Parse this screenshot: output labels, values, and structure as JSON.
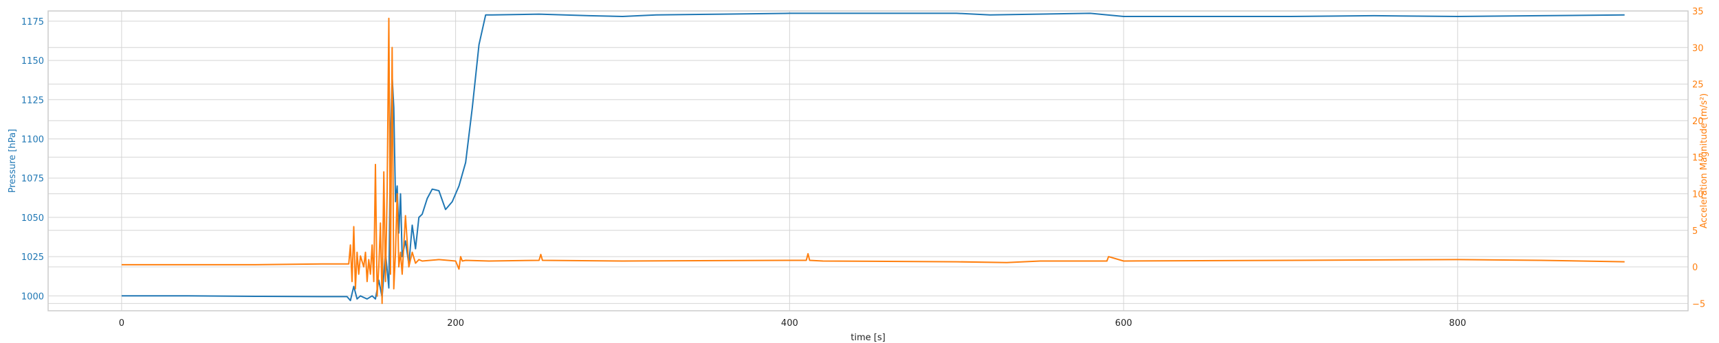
{
  "chart_data": {
    "type": "line",
    "title": "",
    "xlabel": "time [s]",
    "ylabel_left": "Pressure [hPa]",
    "ylabel_right": "Acceleration Magnitude (m/s²)",
    "xlim": [
      -44,
      938
    ],
    "ylim_left": [
      990.5,
      1181.5
    ],
    "ylim_right": [
      -6,
      35
    ],
    "grid": true,
    "x_ticks": [
      0,
      200,
      400,
      600,
      800
    ],
    "y_left_ticks": [
      1000,
      1025,
      1050,
      1075,
      1100,
      1125,
      1150,
      1175
    ],
    "y_right_ticks": [
      -5,
      0,
      5,
      10,
      15,
      20,
      25,
      30,
      35
    ],
    "colors": {
      "pressure": "#1f77b4",
      "acceleration": "#ff7f0e",
      "grid": "#d4d4d4",
      "axes": "#cccccc",
      "text": "#222222"
    },
    "series": [
      {
        "axis": "left",
        "color": "#1f77b4",
        "x": [
          0,
          40,
          80,
          120,
          135,
          137,
          139,
          141,
          143,
          145,
          147,
          150,
          152,
          154,
          156,
          158,
          160,
          161,
          162,
          163,
          164,
          165,
          166,
          167,
          168,
          170,
          172,
          174,
          176,
          178,
          180,
          183,
          186,
          190,
          194,
          198,
          202,
          206,
          210,
          214,
          218,
          222,
          250,
          280,
          300,
          320,
          360,
          400,
          450,
          500,
          520,
          580,
          600,
          650,
          700,
          750,
          800,
          850,
          900
        ],
        "y": [
          1000,
          1000,
          999.7,
          999.5,
          999.5,
          997,
          1006,
          998,
          1000,
          999,
          998,
          1000,
          998,
          1010,
          999,
          1028,
          1005,
          1100,
          1140,
          1120,
          1060,
          1070,
          1040,
          1065,
          1025,
          1035,
          1020,
          1045,
          1030,
          1050,
          1052,
          1062,
          1068,
          1067,
          1055,
          1060,
          1070,
          1085,
          1120,
          1160,
          1179,
          1179,
          1179.5,
          1178.5,
          1178,
          1179,
          1179.5,
          1180,
          1180,
          1180,
          1179,
          1180,
          1178,
          1178,
          1178,
          1178.5,
          1178,
          1178.5,
          1179
        ]
      },
      {
        "axis": "right",
        "color": "#ff7f0e",
        "x": [
          0,
          40,
          80,
          120,
          136,
          137,
          138,
          139,
          140,
          141,
          142,
          143,
          145,
          146,
          147,
          148,
          149,
          150,
          151,
          152,
          153,
          154,
          155,
          156,
          157,
          158,
          159,
          160,
          161,
          162,
          163,
          164,
          165,
          166,
          167,
          168,
          170,
          172,
          174,
          176,
          178,
          180,
          190,
          200,
          202,
          203,
          204,
          206,
          220,
          250,
          251,
          252,
          300,
          400,
          410,
          411,
          412,
          420,
          500,
          530,
          550,
          590,
          591,
          600,
          700,
          800,
          850,
          900
        ],
        "y": [
          0.3,
          0.3,
          0.3,
          0.4,
          0.4,
          3,
          -2,
          5.5,
          -3,
          2,
          -1,
          1.5,
          0,
          2,
          -2,
          1,
          -1,
          3,
          -2,
          14,
          -4,
          0,
          6,
          -5,
          13,
          -2,
          10,
          34,
          -1,
          30,
          -3,
          2,
          10,
          0,
          2,
          -1,
          7,
          0,
          2,
          0.5,
          1,
          0.8,
          1,
          0.8,
          -0.3,
          1.4,
          0.8,
          0.9,
          0.8,
          0.9,
          1.7,
          0.9,
          0.8,
          0.9,
          0.9,
          1.8,
          0.9,
          0.8,
          0.7,
          0.6,
          0.8,
          0.8,
          1.4,
          0.8,
          0.9,
          1.0,
          0.9,
          0.7
        ]
      }
    ]
  }
}
